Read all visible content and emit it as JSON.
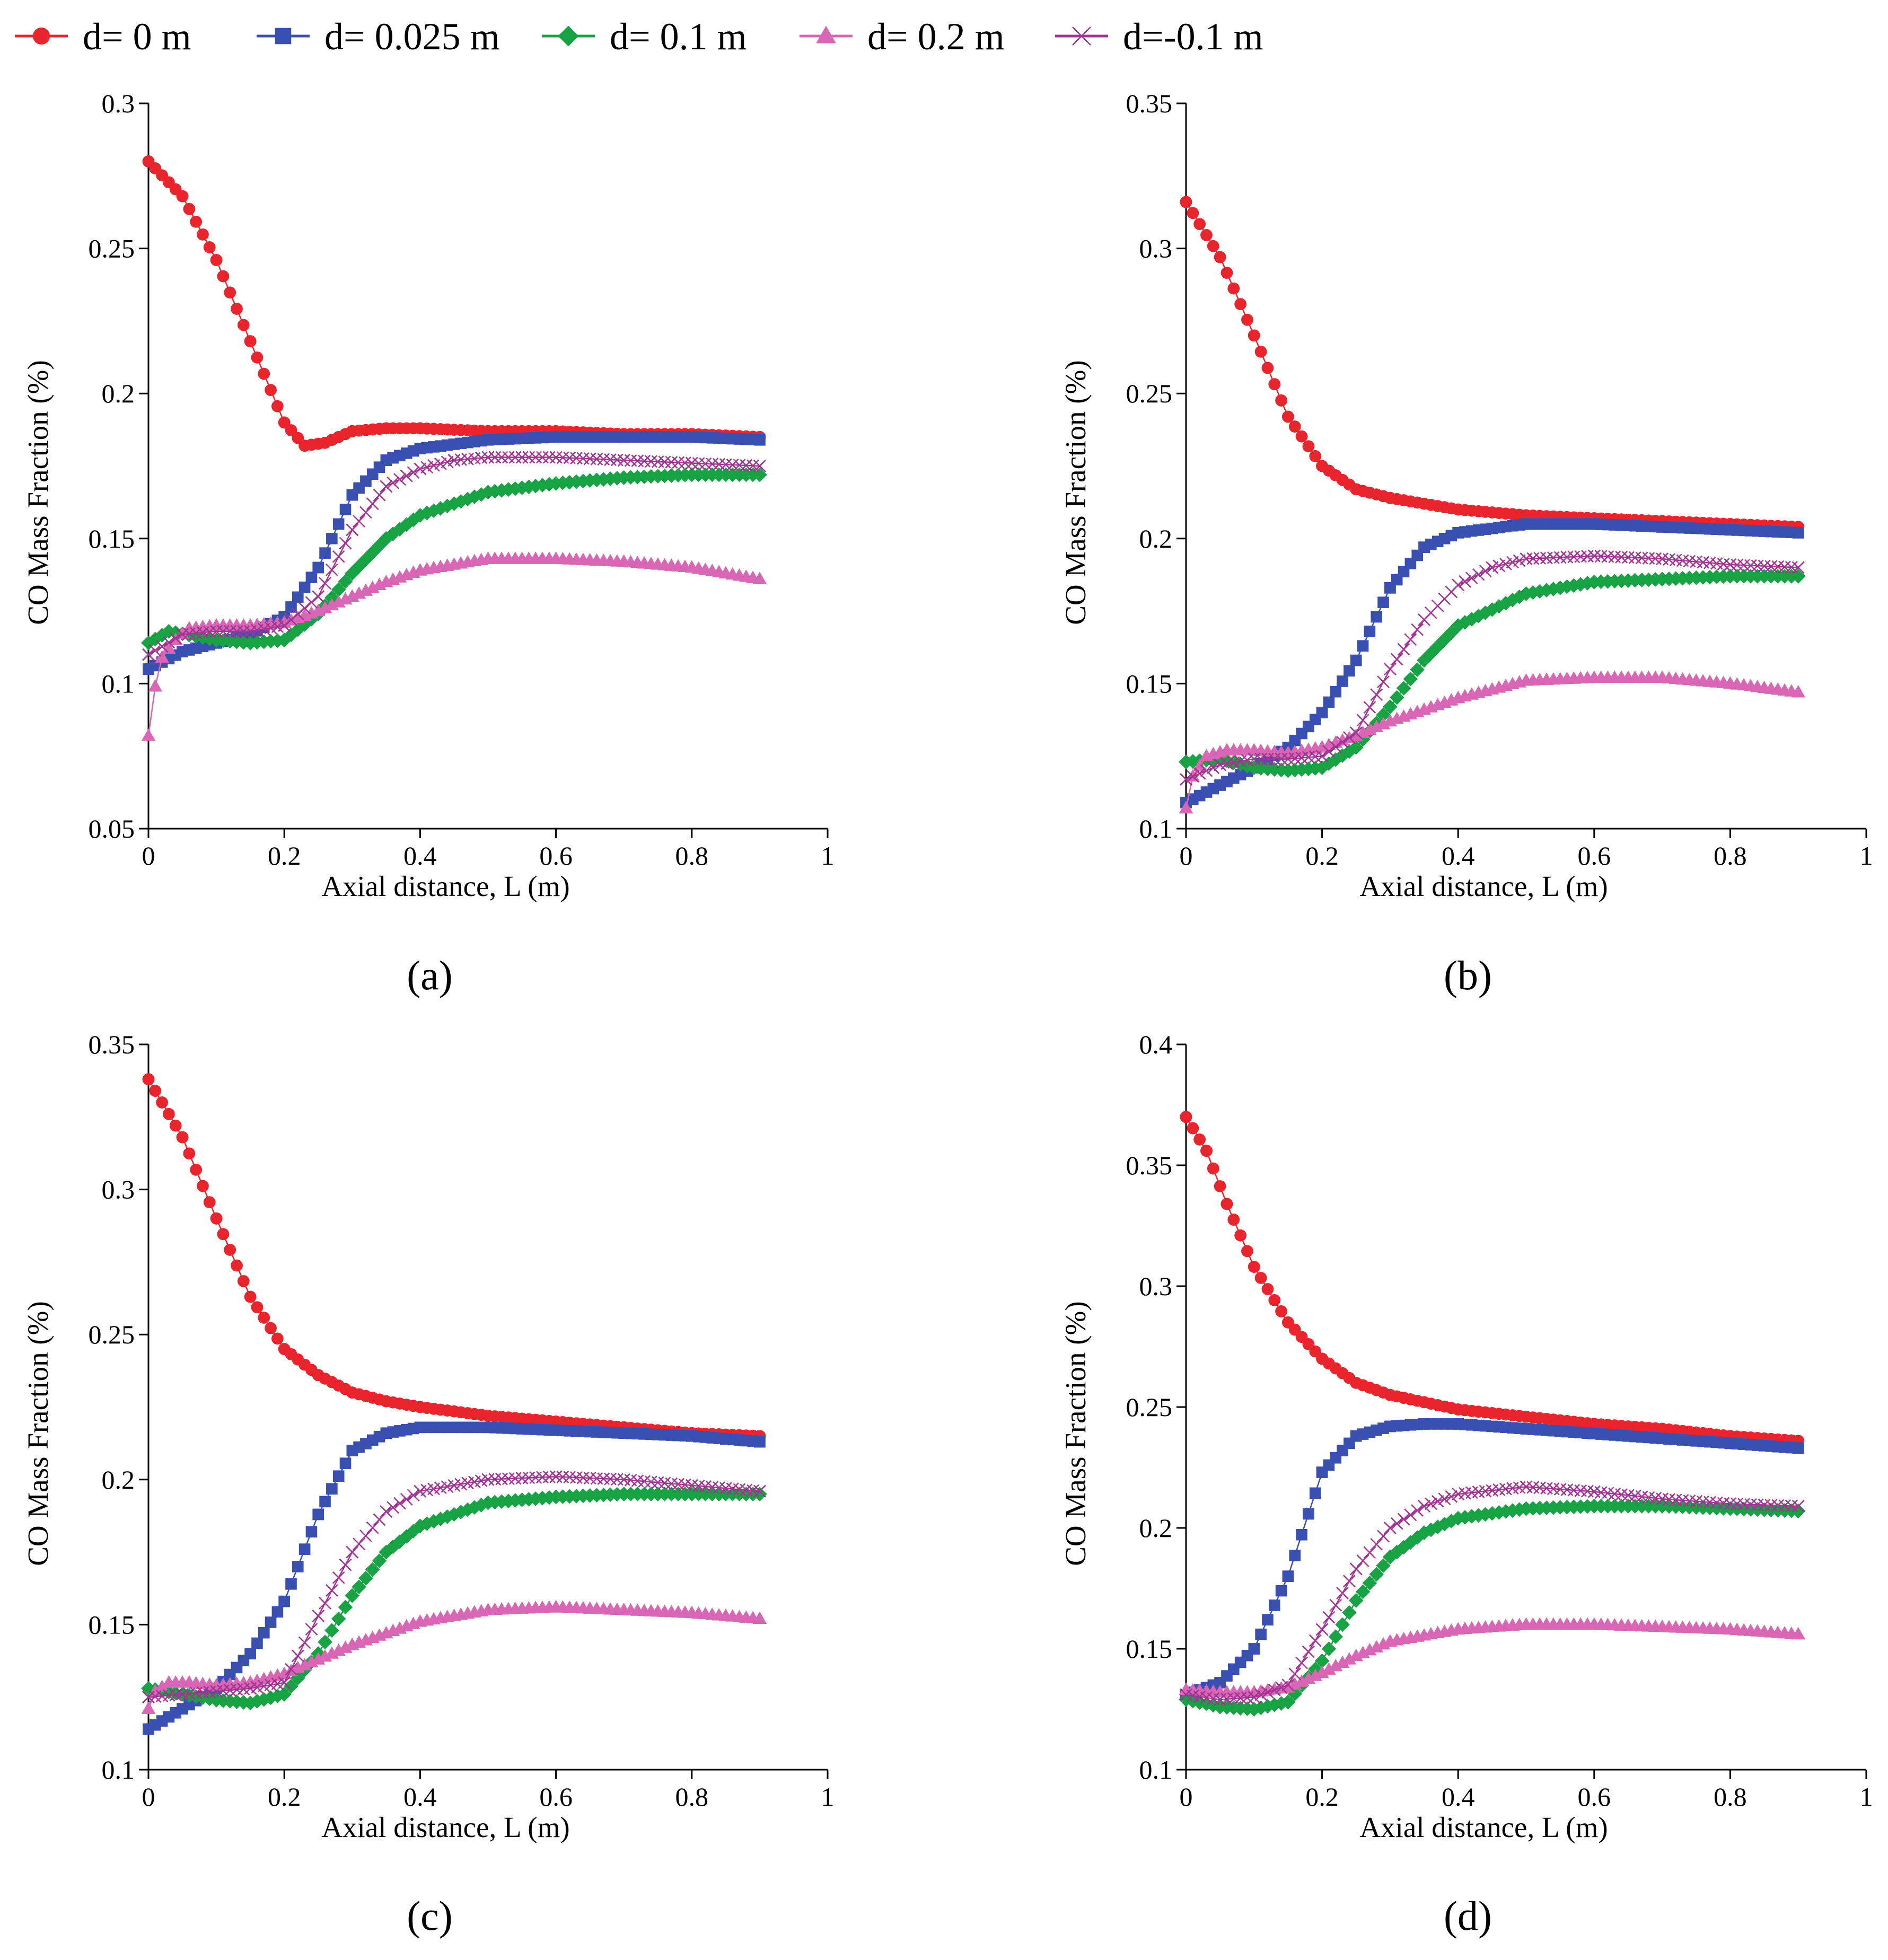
{
  "figure": {
    "type": "multi-panel line chart"
  },
  "legend": [
    {
      "key": "d0",
      "label": "d= 0 m",
      "color": "#e8242d",
      "marker": "circle"
    },
    {
      "key": "d025",
      "label": "d= 0.025 m",
      "color": "#3a50b1",
      "marker": "square"
    },
    {
      "key": "d1",
      "label": "d= 0.1 m",
      "color": "#17a243",
      "marker": "diamond"
    },
    {
      "key": "d2",
      "label": "d= 0.2 m",
      "color": "#d966b4",
      "marker": "triangle"
    },
    {
      "key": "dm1",
      "label": "d=-0.1 m",
      "color": "#a23493",
      "marker": "x"
    }
  ],
  "chart_data": [
    {
      "panel": "(a)",
      "type": "line",
      "xlabel": "Axial distance, L (m)",
      "ylabel": "CO Mass Fraction  (%)",
      "xlim": [
        0,
        1
      ],
      "ylim": [
        0.05,
        0.3
      ],
      "xticks": [
        "0",
        "0.2",
        "0.4",
        "0.6",
        "0.8",
        "1"
      ],
      "yticks": [
        "0.05",
        "0.1",
        "0.15",
        "0.2",
        "0.25",
        "0.3"
      ],
      "series": [
        {
          "name": "d= 0 m",
          "x": [
            0,
            0.05,
            0.1,
            0.15,
            0.2,
            0.23,
            0.26,
            0.3,
            0.35,
            0.4,
            0.5,
            0.6,
            0.7,
            0.8,
            0.9
          ],
          "y": [
            0.28,
            0.268,
            0.246,
            0.218,
            0.19,
            0.182,
            0.183,
            0.187,
            0.188,
            0.188,
            0.187,
            0.187,
            0.186,
            0.186,
            0.185
          ]
        },
        {
          "name": "d= 0.025 m",
          "x": [
            0,
            0.05,
            0.1,
            0.15,
            0.2,
            0.25,
            0.3,
            0.35,
            0.4,
            0.5,
            0.6,
            0.7,
            0.8,
            0.9
          ],
          "y": [
            0.105,
            0.111,
            0.114,
            0.117,
            0.123,
            0.14,
            0.165,
            0.177,
            0.181,
            0.184,
            0.185,
            0.185,
            0.185,
            0.184
          ]
        },
        {
          "name": "d= 0.1 m",
          "x": [
            0,
            0.03,
            0.1,
            0.15,
            0.2,
            0.25,
            0.3,
            0.35,
            0.4,
            0.5,
            0.6,
            0.7,
            0.8,
            0.9
          ],
          "y": [
            0.114,
            0.118,
            0.115,
            0.114,
            0.115,
            0.124,
            0.138,
            0.15,
            0.158,
            0.166,
            0.169,
            0.171,
            0.172,
            0.172
          ]
        },
        {
          "name": "d= 0.2 m",
          "x": [
            0,
            0.01,
            0.02,
            0.04,
            0.06,
            0.1,
            0.15,
            0.2,
            0.25,
            0.3,
            0.35,
            0.4,
            0.5,
            0.6,
            0.7,
            0.8,
            0.9
          ],
          "y": [
            0.082,
            0.099,
            0.109,
            0.115,
            0.119,
            0.12,
            0.12,
            0.121,
            0.125,
            0.13,
            0.135,
            0.139,
            0.143,
            0.143,
            0.142,
            0.14,
            0.136
          ]
        },
        {
          "name": "d=-0.1 m",
          "x": [
            0,
            0.05,
            0.1,
            0.15,
            0.2,
            0.25,
            0.3,
            0.35,
            0.4,
            0.45,
            0.5,
            0.6,
            0.7,
            0.8,
            0.9
          ],
          "y": [
            0.11,
            0.117,
            0.118,
            0.118,
            0.12,
            0.13,
            0.153,
            0.168,
            0.174,
            0.177,
            0.178,
            0.178,
            0.177,
            0.176,
            0.175
          ]
        }
      ]
    },
    {
      "panel": "(b)",
      "type": "line",
      "xlabel": "Axial distance, L (m)",
      "ylabel": "CO Mass Fraction  (%)",
      "xlim": [
        0,
        1
      ],
      "ylim": [
        0.1,
        0.35
      ],
      "xticks": [
        "0",
        "0.2",
        "0.4",
        "0.6",
        "0.8",
        "1"
      ],
      "yticks": [
        "0.1",
        "0.15",
        "0.2",
        "0.25",
        "0.3",
        "0.35"
      ],
      "series": [
        {
          "name": "d= 0 m",
          "x": [
            0,
            0.05,
            0.1,
            0.15,
            0.2,
            0.25,
            0.3,
            0.4,
            0.5,
            0.6,
            0.7,
            0.8,
            0.9
          ],
          "y": [
            0.316,
            0.297,
            0.27,
            0.242,
            0.225,
            0.217,
            0.214,
            0.21,
            0.208,
            0.207,
            0.206,
            0.205,
            0.204
          ]
        },
        {
          "name": "d= 0.025 m",
          "x": [
            0,
            0.05,
            0.1,
            0.15,
            0.2,
            0.25,
            0.3,
            0.35,
            0.4,
            0.5,
            0.6,
            0.7,
            0.8,
            0.9
          ],
          "y": [
            0.109,
            0.115,
            0.121,
            0.128,
            0.14,
            0.158,
            0.183,
            0.197,
            0.202,
            0.205,
            0.205,
            0.204,
            0.203,
            0.202
          ]
        },
        {
          "name": "d= 0.1 m",
          "x": [
            0,
            0.05,
            0.1,
            0.15,
            0.2,
            0.25,
            0.3,
            0.35,
            0.4,
            0.5,
            0.6,
            0.7,
            0.8,
            0.9
          ],
          "y": [
            0.123,
            0.124,
            0.121,
            0.12,
            0.121,
            0.128,
            0.142,
            0.158,
            0.17,
            0.181,
            0.185,
            0.186,
            0.187,
            0.187
          ]
        },
        {
          "name": "d= 0.2 m",
          "x": [
            0,
            0.01,
            0.03,
            0.06,
            0.1,
            0.15,
            0.2,
            0.25,
            0.3,
            0.4,
            0.5,
            0.6,
            0.7,
            0.8,
            0.9
          ],
          "y": [
            0.107,
            0.118,
            0.125,
            0.127,
            0.127,
            0.126,
            0.128,
            0.132,
            0.137,
            0.145,
            0.151,
            0.152,
            0.152,
            0.15,
            0.147
          ]
        },
        {
          "name": "d=-0.1 m",
          "x": [
            0,
            0.05,
            0.1,
            0.15,
            0.2,
            0.25,
            0.3,
            0.35,
            0.4,
            0.45,
            0.5,
            0.6,
            0.7,
            0.8,
            0.9
          ],
          "y": [
            0.117,
            0.122,
            0.124,
            0.124,
            0.125,
            0.133,
            0.155,
            0.172,
            0.184,
            0.19,
            0.193,
            0.194,
            0.193,
            0.191,
            0.19
          ]
        }
      ]
    },
    {
      "panel": "(c)",
      "type": "line",
      "xlabel": "Axial distance, L (m)",
      "ylabel": "CO Mass Fraction (%)",
      "xlim": [
        0,
        1
      ],
      "ylim": [
        0.1,
        0.35
      ],
      "xticks": [
        "0",
        "0.2",
        "0.4",
        "0.6",
        "0.8",
        "1"
      ],
      "yticks": [
        "0.1",
        "0.15",
        "0.2",
        "0.25",
        "0.3",
        "0.35"
      ],
      "series": [
        {
          "name": "d= 0 m",
          "x": [
            0,
            0.05,
            0.1,
            0.15,
            0.2,
            0.25,
            0.3,
            0.35,
            0.4,
            0.5,
            0.6,
            0.7,
            0.8,
            0.9
          ],
          "y": [
            0.338,
            0.318,
            0.29,
            0.263,
            0.245,
            0.236,
            0.23,
            0.227,
            0.225,
            0.222,
            0.22,
            0.218,
            0.216,
            0.215
          ]
        },
        {
          "name": "d= 0.025 m",
          "x": [
            0,
            0.05,
            0.1,
            0.15,
            0.2,
            0.25,
            0.3,
            0.35,
            0.4,
            0.5,
            0.6,
            0.7,
            0.8,
            0.9
          ],
          "y": [
            0.114,
            0.121,
            0.128,
            0.14,
            0.158,
            0.188,
            0.21,
            0.216,
            0.218,
            0.218,
            0.217,
            0.216,
            0.215,
            0.213
          ]
        },
        {
          "name": "d= 0.1 m",
          "x": [
            0,
            0.05,
            0.1,
            0.15,
            0.2,
            0.25,
            0.3,
            0.35,
            0.4,
            0.5,
            0.6,
            0.7,
            0.8,
            0.9
          ],
          "y": [
            0.128,
            0.126,
            0.124,
            0.123,
            0.126,
            0.14,
            0.16,
            0.175,
            0.184,
            0.192,
            0.194,
            0.195,
            0.195,
            0.195
          ]
        },
        {
          "name": "d= 0.2 m",
          "x": [
            0,
            0.01,
            0.03,
            0.06,
            0.1,
            0.15,
            0.2,
            0.25,
            0.3,
            0.4,
            0.5,
            0.6,
            0.7,
            0.8,
            0.9
          ],
          "y": [
            0.121,
            0.127,
            0.13,
            0.13,
            0.129,
            0.13,
            0.133,
            0.138,
            0.143,
            0.151,
            0.155,
            0.156,
            0.155,
            0.154,
            0.152
          ]
        },
        {
          "name": "d=-0.1 m",
          "x": [
            0,
            0.05,
            0.1,
            0.15,
            0.2,
            0.25,
            0.3,
            0.35,
            0.4,
            0.5,
            0.6,
            0.7,
            0.8,
            0.9
          ],
          "y": [
            0.125,
            0.126,
            0.127,
            0.128,
            0.13,
            0.153,
            0.175,
            0.189,
            0.196,
            0.2,
            0.201,
            0.2,
            0.198,
            0.196
          ]
        }
      ]
    },
    {
      "panel": "(d)",
      "type": "line",
      "xlabel": "Axial distance, L (m)",
      "ylabel": "CO Mass Fraction (%)",
      "xlim": [
        0,
        1
      ],
      "ylim": [
        0.1,
        0.4
      ],
      "xticks": [
        "0",
        "0.2",
        "0.4",
        "0.6",
        "0.8",
        "1"
      ],
      "yticks": [
        "0.1",
        "0.15",
        "0.2",
        "0.25",
        "0.3",
        "0.35",
        "0.4"
      ],
      "series": [
        {
          "name": "d= 0 m",
          "x": [
            0,
            0.03,
            0.06,
            0.1,
            0.15,
            0.2,
            0.25,
            0.3,
            0.35,
            0.4,
            0.5,
            0.6,
            0.7,
            0.8,
            0.9
          ],
          "y": [
            0.37,
            0.356,
            0.334,
            0.308,
            0.285,
            0.27,
            0.26,
            0.255,
            0.252,
            0.249,
            0.246,
            0.243,
            0.241,
            0.238,
            0.236
          ]
        },
        {
          "name": "d= 0.025 m",
          "x": [
            0,
            0.05,
            0.1,
            0.15,
            0.2,
            0.25,
            0.3,
            0.35,
            0.4,
            0.5,
            0.6,
            0.7,
            0.8,
            0.9
          ],
          "y": [
            0.131,
            0.136,
            0.15,
            0.18,
            0.223,
            0.238,
            0.242,
            0.243,
            0.243,
            0.241,
            0.239,
            0.237,
            0.235,
            0.233
          ]
        },
        {
          "name": "d= 0.1 m",
          "x": [
            0,
            0.05,
            0.1,
            0.15,
            0.2,
            0.25,
            0.3,
            0.35,
            0.4,
            0.5,
            0.6,
            0.7,
            0.8,
            0.9
          ],
          "y": [
            0.129,
            0.126,
            0.125,
            0.128,
            0.145,
            0.17,
            0.188,
            0.198,
            0.204,
            0.208,
            0.209,
            0.209,
            0.208,
            0.207
          ]
        },
        {
          "name": "d= 0.2 m",
          "x": [
            0,
            0.05,
            0.1,
            0.15,
            0.2,
            0.25,
            0.3,
            0.4,
            0.5,
            0.6,
            0.7,
            0.8,
            0.9
          ],
          "y": [
            0.133,
            0.132,
            0.132,
            0.134,
            0.14,
            0.147,
            0.153,
            0.158,
            0.16,
            0.16,
            0.159,
            0.158,
            0.156
          ]
        },
        {
          "name": "d=-0.1 m",
          "x": [
            0,
            0.05,
            0.1,
            0.15,
            0.2,
            0.25,
            0.3,
            0.35,
            0.4,
            0.5,
            0.6,
            0.7,
            0.8,
            0.9
          ],
          "y": [
            0.131,
            0.129,
            0.13,
            0.135,
            0.158,
            0.183,
            0.2,
            0.209,
            0.214,
            0.217,
            0.215,
            0.212,
            0.21,
            0.209
          ]
        }
      ]
    }
  ]
}
